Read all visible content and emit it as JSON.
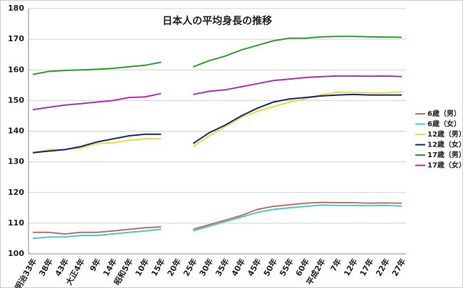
{
  "chart_data": {
    "type": "line",
    "title": "日本人の平均身長の推移",
    "categories": [
      "明治33年",
      "38年",
      "43年",
      "大正4年",
      "9年",
      "14年",
      "昭和5年",
      "10年",
      "15年",
      "20年",
      "25年",
      "30年",
      "35年",
      "40年",
      "45年",
      "50年",
      "55年",
      "60年",
      "平成2年",
      "7年",
      "12年",
      "17年",
      "22年",
      "27年"
    ],
    "series": [
      {
        "name": "6歳（男）",
        "color": "#c0706b",
        "values": [
          107,
          107,
          106.5,
          107,
          107,
          107.5,
          108,
          108.5,
          108.8,
          null,
          108,
          109.5,
          111,
          112.5,
          114.5,
          115.5,
          116,
          116.5,
          116.8,
          116.7,
          116.7,
          116.5,
          116.6,
          116.5
        ]
      },
      {
        "name": "6歳（女）",
        "color": "#4fc8c8",
        "values": [
          105,
          105.5,
          105.5,
          106,
          106,
          106.5,
          107,
          107.5,
          108,
          null,
          107.5,
          109,
          110.5,
          112,
          113.5,
          114.5,
          115,
          115.5,
          115.9,
          115.8,
          115.8,
          115.7,
          115.8,
          115.6
        ]
      },
      {
        "name": "12歳（男）",
        "color": "#e8dc3a",
        "values": [
          133,
          134,
          134,
          134.5,
          136,
          136.2,
          137,
          137.5,
          137.5,
          null,
          135,
          138.5,
          141.5,
          144.5,
          146.5,
          148,
          149.5,
          150.5,
          152,
          152.7,
          152.7,
          152.5,
          152.5,
          152.8
        ]
      },
      {
        "name": "12歳（女）",
        "color": "#1a237e",
        "values": [
          133,
          133.5,
          134,
          135,
          136.5,
          137.5,
          138.5,
          139,
          139,
          null,
          136,
          139.5,
          142,
          145,
          147.5,
          149.5,
          150.5,
          151,
          151.5,
          151.8,
          152,
          151.8,
          151.8,
          151.8
        ]
      },
      {
        "name": "17歳（男）",
        "color": "#2e9e2e",
        "values": [
          158.5,
          159.5,
          159.8,
          160,
          160.2,
          160.5,
          161,
          161.5,
          162.5,
          null,
          161,
          163,
          164.5,
          166.5,
          168,
          169.5,
          170.3,
          170.3,
          170.8,
          170.9,
          170.9,
          170.8,
          170.7,
          170.6
        ]
      },
      {
        "name": "17歳（女）",
        "color": "#b030b0",
        "values": [
          147,
          147.8,
          148.5,
          149,
          149.5,
          150,
          151,
          151.2,
          152.3,
          null,
          152,
          153,
          153.5,
          154.5,
          155.5,
          156.5,
          157,
          157.5,
          157.8,
          158,
          158,
          157.9,
          158,
          157.8
        ]
      }
    ],
    "ylim": [
      100,
      180
    ],
    "yticks": [
      100,
      110,
      120,
      130,
      140,
      150,
      160,
      170,
      180
    ],
    "grid": true,
    "legend": "right"
  }
}
